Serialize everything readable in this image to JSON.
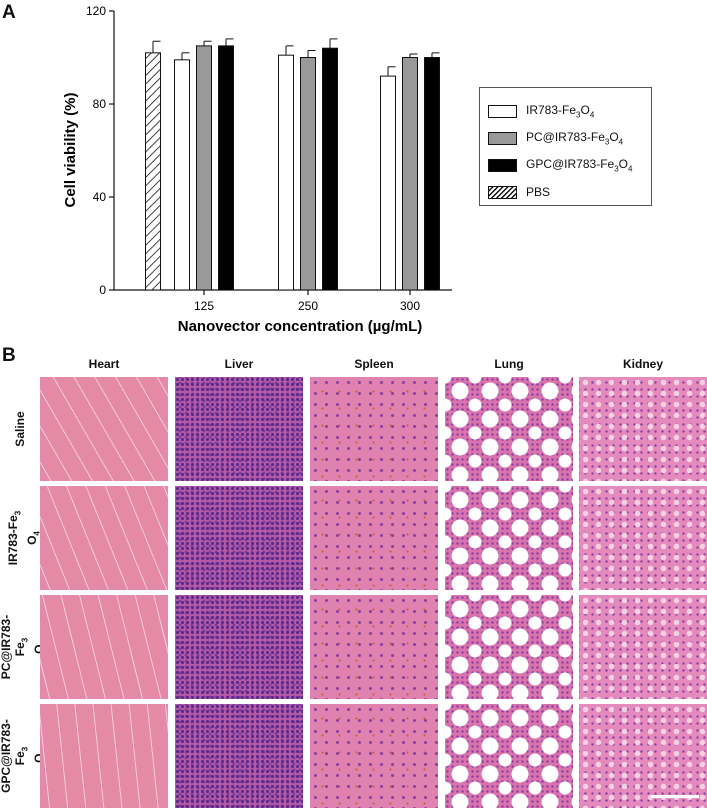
{
  "panel_a": {
    "letter": "A"
  },
  "panel_b": {
    "letter": "B"
  },
  "chart_data": {
    "type": "bar",
    "title": "",
    "xlabel": "Nanovector concentration (µg/mL)",
    "ylabel": "Cell viability (%)",
    "ylim": [
      0,
      120
    ],
    "yticks": [
      0,
      40,
      80,
      120
    ],
    "grid": false,
    "legend_position": "right",
    "categories": [
      "",
      "125",
      "250",
      "300"
    ],
    "series": [
      {
        "name": "IR783-Fe3O4",
        "name_parts": [
          "IR783-Fe",
          "3",
          "O",
          "4"
        ],
        "fill": "#ffffff",
        "values": [
          null,
          99,
          101,
          92
        ],
        "errors": [
          null,
          3,
          4,
          4
        ]
      },
      {
        "name": "PC@IR783-Fe3O4",
        "name_parts": [
          "PC@IR783-Fe",
          "3",
          "O",
          "4"
        ],
        "fill": "#999999",
        "values": [
          null,
          105,
          100,
          100
        ],
        "errors": [
          null,
          2,
          3,
          1.5
        ]
      },
      {
        "name": "GPC@IR783-Fe3O4",
        "name_parts": [
          "GPC@IR783-Fe",
          "3",
          "O",
          "4"
        ],
        "fill": "#000000",
        "values": [
          null,
          105,
          104,
          100
        ],
        "errors": [
          null,
          3,
          4,
          2
        ]
      },
      {
        "name": "PBS",
        "name_parts": [
          "PBS",
          "",
          "",
          ""
        ],
        "fill": "hatch",
        "values": [
          102,
          null,
          null,
          null
        ],
        "errors": [
          5,
          null,
          null,
          null
        ]
      }
    ]
  },
  "histology": {
    "columns": [
      "Heart",
      "Liver",
      "Spleen",
      "Lung",
      "Kidney"
    ],
    "rows": [
      {
        "label_lines": [
          [
            "Saline",
            ""
          ]
        ]
      },
      {
        "label_lines": [
          [
            "IR783-Fe",
            "3"
          ],
          [
            "O",
            "4"
          ]
        ]
      },
      {
        "label_lines": [
          [
            "PC@IR783-",
            ""
          ],
          [
            "Fe",
            "3"
          ],
          [
            "O",
            "4"
          ]
        ]
      },
      {
        "label_lines": [
          [
            "GPC@IR783-",
            ""
          ],
          [
            "Fe",
            "3"
          ],
          [
            "O",
            "4"
          ]
        ]
      }
    ],
    "tissue_colors": {
      "Heart": "#e58aa6",
      "Liver": "#b45aa6",
      "Spleen": "#e082b0",
      "Lung": "#d873ad",
      "Kidney": "#e48abd"
    }
  }
}
